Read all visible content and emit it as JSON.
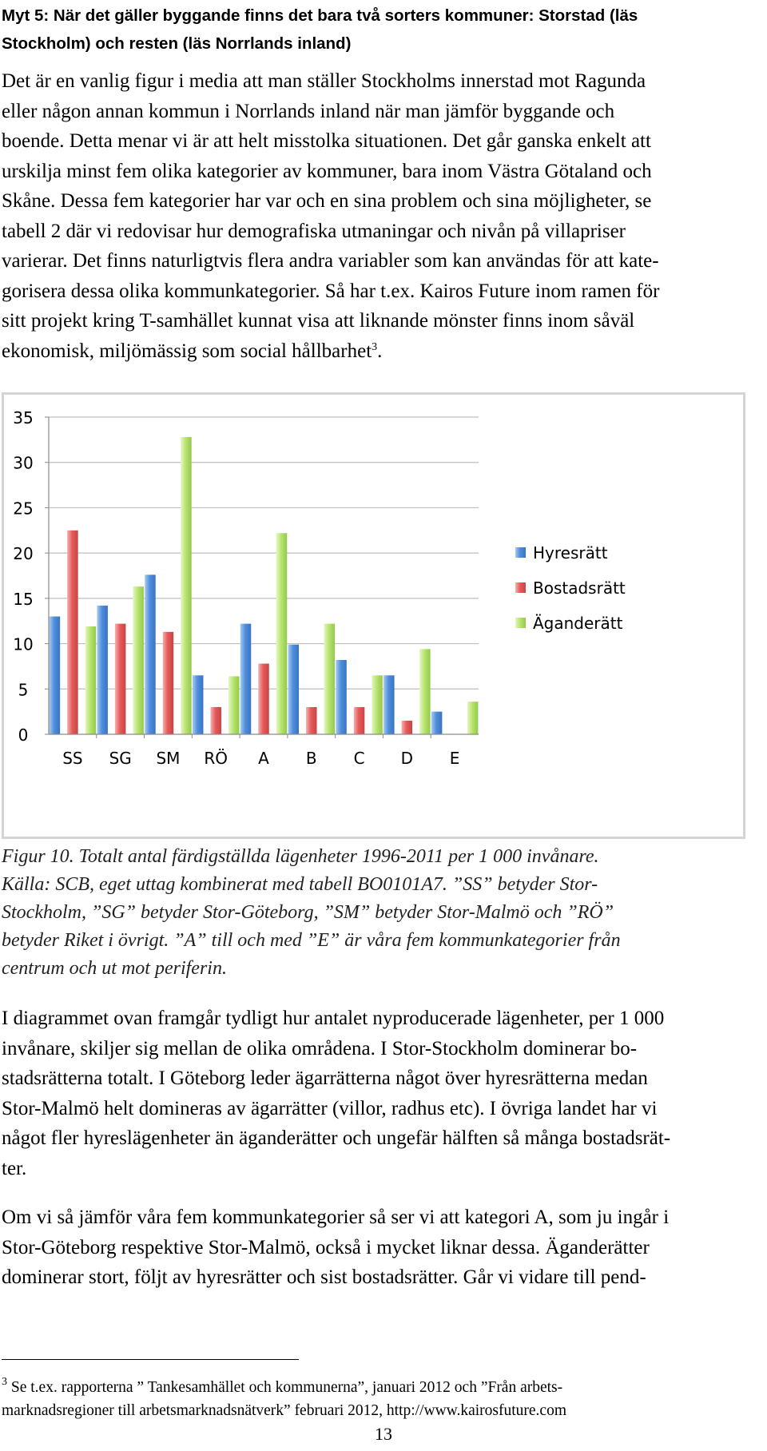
{
  "heading": [
    "Myt 5: När det gäller byggande finns det bara två sorters kommuner: Storstad (läs",
    "Stockholm) och resten (läs Norrlands inland)"
  ],
  "paragraph_1": [
    "Det är en vanlig figur i media att man ställer Stockholms innerstad mot Ragunda",
    "eller någon annan kommun i Norrlands inland när man jämför byggande och",
    "boende. Detta menar vi är att helt misstolka situationen. Det går ganska enkelt att",
    "urskilja minst fem olika kategorier av kommuner, bara inom Västra Götaland och",
    "Skåne. Dessa fem kategorier har var och en sina problem och sina möjligheter, se",
    "tabell 2 där vi redovisar hur demografiska utmaningar och nivån på villapriser",
    "varierar. Det finns naturligtvis flera andra variabler som kan användas för att kate-",
    "gorisera dessa olika kommunkategorier. Så har t.ex. Kairos Future inom ramen för",
    "sitt projekt kring T-samhället kunnat visa att liknande mönster finns inom såväl",
    "ekonomisk, miljömässig som social hållbarhet"
  ],
  "paragraph_1_footnote_ref": "3",
  "paragraph_1_end": ".",
  "caption": [
    "Figur 10. Totalt antal färdigställda lägenheter 1996-2011 per 1 000 invånare.",
    "Källa: SCB, eget uttag kombinerat med tabell BO0101A7. ”SS” betyder Stor-",
    "Stockholm, ”SG” betyder Stor-Göteborg, ”SM” betyder Stor-Malmö och ”RÖ”",
    "betyder Riket i övrigt. ”A” till och med ”E” är våra fem kommunkategorier från",
    "centrum och ut mot periferin."
  ],
  "paragraph_2": [
    "I diagrammet ovan framgår tydligt hur antalet nyproducerade lägenheter, per 1 000",
    "invånare, skiljer sig mellan de olika områdena. I Stor-Stockholm dominerar bo-",
    "stadsrätterna totalt. I Göteborg leder ägarrätterna något över hyresrätterna medan",
    "Stor-Malmö helt domineras av ägarrätter (villor, radhus etc). I övriga landet har vi",
    "något fler hyreslägenheter än äganderätter och ungefär hälften så många bostadsrät-",
    "ter."
  ],
  "paragraph_3": [
    "Om vi så jämför våra fem kommunkategorier så ser vi att kategori A, som ju ingår i",
    "Stor-Göteborg respektive Stor-Malmö, också i mycket liknar dessa. Äganderätter",
    "dominerar stort, följt av hyresrätter och sist bostadsrätter. Går vi vidare till pend-"
  ],
  "footnote": {
    "number": "3",
    "lines": [
      " Se t.ex. rapporterna ” Tankesamhället och kommunerna”, januari 2012 och  ”Från arbets-",
      "marknadsregioner till arbetsmarknadsnätverk” februari 2012, http://www.kairosfuture.com"
    ]
  },
  "page_number": "13",
  "chart_data": {
    "type": "bar",
    "title": "",
    "xlabel": "",
    "ylabel": "",
    "categories": [
      "SS",
      "SG",
      "SM",
      "RÖ",
      "A",
      "B",
      "C",
      "D",
      "E"
    ],
    "series": [
      {
        "name": "Hyresrätt",
        "color": "#4f8fdd",
        "values": [
          13,
          14.2,
          17.6,
          6.5,
          12.2,
          9.9,
          8.2,
          6.5,
          2.5
        ]
      },
      {
        "name": "Bostadsrätt",
        "color": "#e65b5b",
        "values": [
          22.5,
          12.2,
          11.3,
          3.0,
          7.8,
          3.0,
          3.0,
          1.5,
          0
        ]
      },
      {
        "name": "Äganderätt",
        "color": "#a6dc5a",
        "values": [
          11.9,
          16.3,
          32.8,
          6.4,
          22.2,
          12.2,
          6.5,
          9.4,
          3.6
        ]
      }
    ],
    "yticks": [
      0,
      5,
      10,
      15,
      20,
      25,
      30,
      35
    ],
    "ylim": [
      0,
      35
    ],
    "grid": true,
    "legend": "right"
  }
}
